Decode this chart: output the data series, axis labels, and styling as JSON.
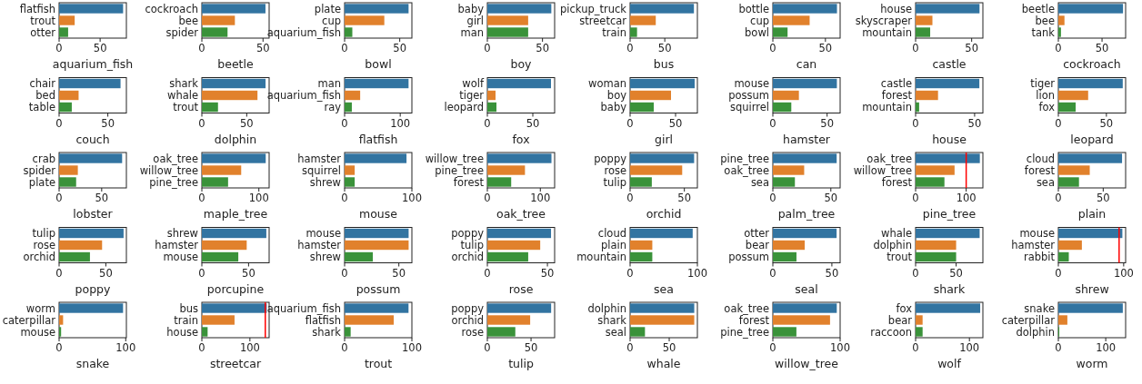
{
  "chart_data": [
    {
      "type": "bar",
      "orientation": "horizontal",
      "categories": [
        "flatfish",
        "trout",
        "otter"
      ],
      "values": [
        78,
        19,
        11
      ],
      "colors": [
        "#3274a1",
        "#e1812c",
        "#3a923a"
      ],
      "xlabel": "aquarium_fish",
      "xlim": [
        0,
        82
      ],
      "xticks": [
        0,
        50
      ]
    },
    {
      "type": "bar",
      "orientation": "horizontal",
      "categories": [
        "cockroach",
        "bee",
        "spider"
      ],
      "values": [
        52,
        27,
        21
      ],
      "colors": [
        "#3274a1",
        "#e1812c",
        "#3a923a"
      ],
      "xlabel": "beetle",
      "xlim": [
        0,
        55
      ],
      "xticks": [
        0,
        50
      ]
    },
    {
      "type": "bar",
      "orientation": "horizontal",
      "categories": [
        "plate",
        "cup",
        "aquarium_fish"
      ],
      "values": [
        58,
        36,
        7
      ],
      "colors": [
        "#3274a1",
        "#e1812c",
        "#3a923a"
      ],
      "xlabel": "bowl",
      "xlim": [
        0,
        61
      ],
      "xticks": [
        0,
        50
      ]
    },
    {
      "type": "bar",
      "orientation": "horizontal",
      "categories": [
        "baby",
        "girl",
        "man"
      ],
      "values": [
        58,
        37,
        37
      ],
      "colors": [
        "#3274a1",
        "#e1812c",
        "#3a923a"
      ],
      "xlabel": "boy",
      "xlim": [
        0,
        61
      ],
      "xticks": [
        0,
        50
      ]
    },
    {
      "type": "bar",
      "orientation": "horizontal",
      "categories": [
        "pickup_truck",
        "streetcar",
        "train"
      ],
      "values": [
        92,
        37,
        10
      ],
      "colors": [
        "#3274a1",
        "#e1812c",
        "#3a923a"
      ],
      "xlabel": "bus",
      "xlim": [
        0,
        97
      ],
      "xticks": [
        0,
        50
      ]
    },
    {
      "type": "bar",
      "orientation": "horizontal",
      "categories": [
        "bottle",
        "cup",
        "bowl"
      ],
      "values": [
        61,
        35,
        14
      ],
      "colors": [
        "#3274a1",
        "#e1812c",
        "#3a923a"
      ],
      "xlabel": "can",
      "xlim": [
        0,
        64
      ],
      "xticks": [
        0,
        50
      ]
    },
    {
      "type": "bar",
      "orientation": "horizontal",
      "categories": [
        "house",
        "skyscraper",
        "mountain"
      ],
      "values": [
        57,
        15,
        13
      ],
      "colors": [
        "#3274a1",
        "#e1812c",
        "#3a923a"
      ],
      "xlabel": "castle",
      "xlim": [
        0,
        60
      ],
      "xticks": [
        0,
        50
      ]
    },
    {
      "type": "bar",
      "orientation": "horizontal",
      "categories": [
        "beetle",
        "bee",
        "tank"
      ],
      "values": [
        74,
        7,
        3
      ],
      "colors": [
        "#3274a1",
        "#e1812c",
        "#3a923a"
      ],
      "xlabel": "cockroach",
      "xlim": [
        0,
        77
      ],
      "xticks": [
        0,
        50
      ]
    },
    {
      "type": "bar",
      "orientation": "horizontal",
      "categories": [
        "chair",
        "bed",
        "table"
      ],
      "values": [
        63,
        20,
        13
      ],
      "colors": [
        "#3274a1",
        "#e1812c",
        "#3a923a"
      ],
      "xlabel": "couch",
      "xlim": [
        0,
        69
      ],
      "xticks": [
        0,
        50
      ]
    },
    {
      "type": "bar",
      "orientation": "horizontal",
      "categories": [
        "shark",
        "whale",
        "trout"
      ],
      "values": [
        71,
        62,
        18
      ],
      "colors": [
        "#3274a1",
        "#e1812c",
        "#3a923a"
      ],
      "xlabel": "dolphin",
      "xlim": [
        0,
        75
      ],
      "xticks": [
        0,
        50
      ]
    },
    {
      "type": "bar",
      "orientation": "horizontal",
      "categories": [
        "man",
        "aquarium_fish",
        "ray"
      ],
      "values": [
        115,
        28,
        13
      ],
      "colors": [
        "#3274a1",
        "#e1812c",
        "#3a923a"
      ],
      "xlabel": "flatfish",
      "xlim": [
        0,
        121
      ],
      "xticks": [
        0,
        100
      ]
    },
    {
      "type": "bar",
      "orientation": "horizontal",
      "categories": [
        "wolf",
        "tiger",
        "leopard"
      ],
      "values": [
        70,
        9,
        10
      ],
      "colors": [
        "#3274a1",
        "#e1812c",
        "#3a923a"
      ],
      "xlabel": "fox",
      "xlim": [
        0,
        74
      ],
      "xticks": [
        0,
        50
      ]
    },
    {
      "type": "bar",
      "orientation": "horizontal",
      "categories": [
        "woman",
        "boy",
        "baby"
      ],
      "values": [
        71,
        45,
        26
      ],
      "colors": [
        "#3274a1",
        "#e1812c",
        "#3a923a"
      ],
      "xlabel": "girl",
      "xlim": [
        0,
        74
      ],
      "xticks": [
        0,
        50
      ]
    },
    {
      "type": "bar",
      "orientation": "horizontal",
      "categories": [
        "mouse",
        "possum",
        "squirrel"
      ],
      "values": [
        59,
        24,
        17
      ],
      "colors": [
        "#3274a1",
        "#e1812c",
        "#3a923a"
      ],
      "xlabel": "hamster",
      "xlim": [
        0,
        62
      ],
      "xticks": [
        0,
        50
      ]
    },
    {
      "type": "bar",
      "orientation": "horizontal",
      "categories": [
        "castle",
        "forest",
        "mountain"
      ],
      "values": [
        54,
        19,
        3
      ],
      "colors": [
        "#3274a1",
        "#e1812c",
        "#3a923a"
      ],
      "xlabel": "house",
      "xlim": [
        0,
        57
      ],
      "xticks": [
        0,
        50
      ]
    },
    {
      "type": "bar",
      "orientation": "horizontal",
      "categories": [
        "tiger",
        "lion",
        "fox"
      ],
      "values": [
        67,
        31,
        18
      ],
      "colors": [
        "#3274a1",
        "#e1812c",
        "#3a923a"
      ],
      "xlabel": "leopard",
      "xlim": [
        0,
        70
      ],
      "xticks": [
        0,
        50
      ]
    },
    {
      "type": "bar",
      "orientation": "horizontal",
      "categories": [
        "crab",
        "spider",
        "plate"
      ],
      "values": [
        74,
        22,
        20
      ],
      "colors": [
        "#3274a1",
        "#e1812c",
        "#3a923a"
      ],
      "xlabel": "lobster",
      "xlim": [
        0,
        79
      ],
      "xticks": [
        0,
        50
      ]
    },
    {
      "type": "bar",
      "orientation": "horizontal",
      "categories": [
        "oak_tree",
        "willow_tree",
        "pine_tree"
      ],
      "values": [
        112,
        69,
        46
      ],
      "colors": [
        "#3274a1",
        "#e1812c",
        "#3a923a"
      ],
      "xlabel": "maple_tree",
      "xlim": [
        0,
        118
      ],
      "xticks": [
        0,
        100
      ]
    },
    {
      "type": "bar",
      "orientation": "horizontal",
      "categories": [
        "hamster",
        "squirrel",
        "shrew"
      ],
      "values": [
        92,
        15,
        15
      ],
      "colors": [
        "#3274a1",
        "#e1812c",
        "#3a923a"
      ],
      "xlabel": "mouse",
      "xlim": [
        0,
        100
      ],
      "xticks": [
        0,
        100
      ]
    },
    {
      "type": "bar",
      "orientation": "horizontal",
      "categories": [
        "willow_tree",
        "pine_tree",
        "forest"
      ],
      "values": [
        121,
        71,
        45
      ],
      "colors": [
        "#3274a1",
        "#e1812c",
        "#3a923a"
      ],
      "xlabel": "oak_tree",
      "xlim": [
        0,
        127
      ],
      "xticks": [
        0,
        100
      ]
    },
    {
      "type": "bar",
      "orientation": "horizontal",
      "categories": [
        "poppy",
        "rose",
        "tulip"
      ],
      "values": [
        59,
        48,
        20
      ],
      "colors": [
        "#3274a1",
        "#e1812c",
        "#3a923a"
      ],
      "xlabel": "orchid",
      "xlim": [
        0,
        62
      ],
      "xticks": [
        0,
        50
      ]
    },
    {
      "type": "bar",
      "orientation": "horizontal",
      "categories": [
        "pine_tree",
        "oak_tree",
        "sea"
      ],
      "values": [
        55,
        27,
        19
      ],
      "colors": [
        "#3274a1",
        "#e1812c",
        "#3a923a"
      ],
      "xlabel": "palm_tree",
      "xlim": [
        0,
        58
      ],
      "xticks": [
        0,
        50
      ]
    },
    {
      "type": "bar",
      "orientation": "horizontal",
      "categories": [
        "oak_tree",
        "willow_tree",
        "forest"
      ],
      "values": [
        127,
        77,
        57
      ],
      "colors": [
        "#3274a1",
        "#e1812c",
        "#3a923a"
      ],
      "xlabel": "pine_tree",
      "xlim": [
        0,
        133
      ],
      "xticks": [
        0,
        100
      ],
      "ref_lines": [
        {
          "axis": "x",
          "value": 100,
          "color": "#ff0000"
        }
      ]
    },
    {
      "type": "bar",
      "orientation": "horizontal",
      "categories": [
        "cloud",
        "forest",
        "sea"
      ],
      "values": [
        71,
        35,
        23
      ],
      "colors": [
        "#3274a1",
        "#e1812c",
        "#3a923a"
      ],
      "xlabel": "plain",
      "xlim": [
        0,
        75
      ],
      "xticks": [
        0,
        50
      ]
    },
    {
      "type": "bar",
      "orientation": "horizontal",
      "categories": [
        "tulip",
        "rose",
        "orchid"
      ],
      "values": [
        69,
        46,
        33
      ],
      "colors": [
        "#3274a1",
        "#e1812c",
        "#3a923a"
      ],
      "xlabel": "poppy",
      "xlim": [
        0,
        72
      ],
      "xticks": [
        0,
        50
      ]
    },
    {
      "type": "bar",
      "orientation": "horizontal",
      "categories": [
        "shrew",
        "hamster",
        "mouse"
      ],
      "values": [
        69,
        48,
        39
      ],
      "colors": [
        "#3274a1",
        "#e1812c",
        "#3a923a"
      ],
      "xlabel": "porcupine",
      "xlim": [
        0,
        72
      ],
      "xticks": [
        0,
        50
      ]
    },
    {
      "type": "bar",
      "orientation": "horizontal",
      "categories": [
        "mouse",
        "hamster",
        "shrew"
      ],
      "values": [
        59,
        59,
        26
      ],
      "colors": [
        "#3274a1",
        "#e1812c",
        "#3a923a"
      ],
      "xlabel": "possum",
      "xlim": [
        0,
        62
      ],
      "xticks": [
        0,
        50
      ]
    },
    {
      "type": "bar",
      "orientation": "horizontal",
      "categories": [
        "poppy",
        "tulip",
        "orchid"
      ],
      "values": [
        53,
        44,
        34
      ],
      "colors": [
        "#3274a1",
        "#e1812c",
        "#3a923a"
      ],
      "xlabel": "rose",
      "xlim": [
        0,
        56
      ],
      "xticks": [
        0,
        50
      ]
    },
    {
      "type": "bar",
      "orientation": "horizontal",
      "categories": [
        "cloud",
        "plain",
        "mountain"
      ],
      "values": [
        93,
        33,
        33
      ],
      "colors": [
        "#3274a1",
        "#e1812c",
        "#3a923a"
      ],
      "xlabel": "sea",
      "xlim": [
        0,
        100
      ],
      "xticks": [
        0,
        100
      ]
    },
    {
      "type": "bar",
      "orientation": "horizontal",
      "categories": [
        "otter",
        "bear",
        "possum"
      ],
      "values": [
        54,
        27,
        20
      ],
      "colors": [
        "#3274a1",
        "#e1812c",
        "#3a923a"
      ],
      "xlabel": "seal",
      "xlim": [
        0,
        57
      ],
      "xticks": [
        0,
        50
      ]
    },
    {
      "type": "bar",
      "orientation": "horizontal",
      "categories": [
        "whale",
        "dolphin",
        "trout"
      ],
      "values": [
        79,
        50,
        50
      ],
      "colors": [
        "#3274a1",
        "#e1812c",
        "#3a923a"
      ],
      "xlabel": "shark",
      "xlim": [
        0,
        83
      ],
      "xticks": [
        0,
        50
      ]
    },
    {
      "type": "bar",
      "orientation": "horizontal",
      "categories": [
        "mouse",
        "hamster",
        "rabbit"
      ],
      "values": [
        98,
        36,
        16
      ],
      "colors": [
        "#3274a1",
        "#e1812c",
        "#3a923a"
      ],
      "xlabel": "shrew",
      "xlim": [
        0,
        103
      ],
      "xticks": [
        0,
        100
      ],
      "ref_lines": [
        {
          "axis": "x",
          "value": 93,
          "color": "#ff0000"
        }
      ]
    },
    {
      "type": "bar",
      "orientation": "horizontal",
      "categories": [
        "worm",
        "caterpillar",
        "mouse"
      ],
      "values": [
        96,
        6,
        3
      ],
      "colors": [
        "#3274a1",
        "#e1812c",
        "#3a923a"
      ],
      "xlabel": "snake",
      "xlim": [
        0,
        101
      ],
      "xticks": [
        0,
        100
      ]
    },
    {
      "type": "bar",
      "orientation": "horizontal",
      "categories": [
        "bus",
        "train",
        "house"
      ],
      "values": [
        135,
        68,
        12
      ],
      "colors": [
        "#3274a1",
        "#e1812c",
        "#3a923a"
      ],
      "xlabel": "streetcar",
      "xlim": [
        0,
        140
      ],
      "xticks": [
        0,
        100
      ],
      "ref_lines": [
        {
          "axis": "x",
          "value": 132,
          "color": "#ff0000"
        }
      ]
    },
    {
      "type": "bar",
      "orientation": "horizontal",
      "categories": [
        "aquarium_fish",
        "flatfish",
        "shark"
      ],
      "values": [
        95,
        73,
        9
      ],
      "colors": [
        "#3274a1",
        "#e1812c",
        "#3a923a"
      ],
      "xlabel": "trout",
      "xlim": [
        0,
        100
      ],
      "xticks": [
        0,
        100
      ]
    },
    {
      "type": "bar",
      "orientation": "horizontal",
      "categories": [
        "poppy",
        "orchid",
        "rose"
      ],
      "values": [
        73,
        49,
        32
      ],
      "colors": [
        "#3274a1",
        "#e1812c",
        "#3a923a"
      ],
      "xlabel": "tulip",
      "xlim": [
        0,
        77
      ],
      "xticks": [
        0,
        50
      ]
    },
    {
      "type": "bar",
      "orientation": "horizontal",
      "categories": [
        "dolphin",
        "shark",
        "seal"
      ],
      "values": [
        82,
        82,
        19
      ],
      "colors": [
        "#3274a1",
        "#e1812c",
        "#3a923a"
      ],
      "xlabel": "whale",
      "xlim": [
        0,
        86
      ],
      "xticks": [
        0,
        50
      ]
    },
    {
      "type": "bar",
      "orientation": "horizontal",
      "categories": [
        "oak_tree",
        "forest",
        "pine_tree"
      ],
      "values": [
        95,
        85,
        35
      ],
      "colors": [
        "#3274a1",
        "#e1812c",
        "#3a923a"
      ],
      "xlabel": "willow_tree",
      "xlim": [
        0,
        100
      ],
      "xticks": [
        0,
        100
      ]
    },
    {
      "type": "bar",
      "orientation": "horizontal",
      "categories": [
        "fox",
        "bear",
        "raccoon"
      ],
      "values": [
        120,
        13,
        13
      ],
      "colors": [
        "#3274a1",
        "#e1812c",
        "#3a923a"
      ],
      "xlabel": "wolf",
      "xlim": [
        0,
        125
      ],
      "xticks": [
        0,
        100
      ]
    },
    {
      "type": "bar",
      "orientation": "horizontal",
      "categories": [
        "snake",
        "caterpillar",
        "dolphin"
      ],
      "values": [
        136,
        19,
        2
      ],
      "colors": [
        "#3274a1",
        "#e1812c",
        "#3a923a"
      ],
      "xlabel": "worm",
      "xlim": [
        0,
        142
      ],
      "xticks": [
        0,
        100
      ]
    }
  ]
}
